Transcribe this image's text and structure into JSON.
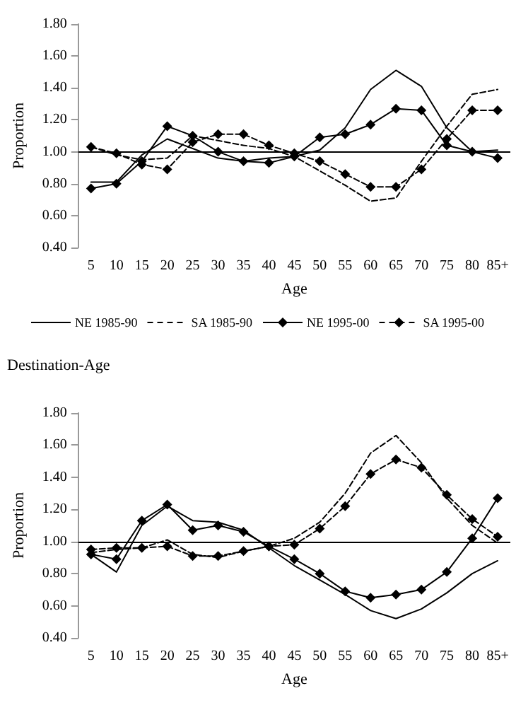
{
  "chart_data": [
    {
      "type": "line",
      "xlabel": "Age",
      "ylabel": "Proportion",
      "categories": [
        "5",
        "10",
        "15",
        "20",
        "25",
        "30",
        "35",
        "40",
        "45",
        "50",
        "55",
        "60",
        "65",
        "70",
        "75",
        "80",
        "85+"
      ],
      "series": [
        {
          "name": "NE 1985-90",
          "color": "#000000",
          "line_style": "solid",
          "marker": "none",
          "values": [
            0.81,
            0.81,
            0.98,
            1.08,
            1.02,
            0.96,
            0.94,
            0.96,
            0.97,
            1.01,
            1.15,
            1.39,
            1.51,
            1.41,
            1.15,
            1.0,
            1.01
          ]
        },
        {
          "name": "SA 1985-90",
          "color": "#000000",
          "line_style": "dashed",
          "marker": "none",
          "values": [
            1.03,
            0.98,
            0.95,
            0.96,
            1.1,
            1.07,
            1.04,
            1.02,
            0.97,
            0.88,
            0.79,
            0.69,
            0.71,
            0.94,
            1.16,
            1.36,
            1.39
          ]
        },
        {
          "name": "NE 1995-00",
          "color": "#000000",
          "line_style": "solid",
          "marker": "diamond",
          "values": [
            0.77,
            0.8,
            0.94,
            1.16,
            1.1,
            1.0,
            0.94,
            0.93,
            0.97,
            1.09,
            1.11,
            1.17,
            1.27,
            1.26,
            1.04,
            1.0,
            0.96
          ]
        },
        {
          "name": "SA 1995-00",
          "color": "#000000",
          "line_style": "dashed",
          "marker": "diamond",
          "values": [
            1.03,
            0.99,
            0.92,
            0.89,
            1.06,
            1.11,
            1.11,
            1.04,
            0.99,
            0.94,
            0.86,
            0.78,
            0.78,
            0.89,
            1.08,
            1.26,
            1.26
          ]
        }
      ],
      "ylim": [
        0.4,
        1.8
      ],
      "yticks": [
        {
          "value": 0.4,
          "label": "0.40"
        },
        {
          "value": 0.6,
          "label": "0.60"
        },
        {
          "value": 0.8,
          "label": "0.80"
        },
        {
          "value": 1.0,
          "label": "1.00"
        },
        {
          "value": 1.2,
          "label": "1.20"
        },
        {
          "value": 1.4,
          "label": "1.40"
        },
        {
          "value": 1.6,
          "label": "1.60"
        },
        {
          "value": 1.8,
          "label": "1.80"
        }
      ],
      "ref_lines": [
        {
          "axis": "y",
          "value": 1.0,
          "color": "#000000"
        }
      ],
      "grid": false,
      "legend": "bottom"
    },
    {
      "type": "line",
      "title": "Destination-Age",
      "xlabel": "Age",
      "ylabel": "Proportion",
      "categories": [
        "5",
        "10",
        "15",
        "20",
        "25",
        "30",
        "35",
        "40",
        "45",
        "50",
        "55",
        "60",
        "65",
        "70",
        "75",
        "80",
        "85+"
      ],
      "series": [
        {
          "color": "#000000",
          "line_style": "solid",
          "marker": "none",
          "values": [
            0.92,
            0.81,
            1.1,
            1.22,
            1.13,
            1.12,
            1.07,
            0.96,
            0.85,
            0.76,
            0.67,
            0.57,
            0.52,
            0.58,
            0.68,
            0.8,
            0.88
          ]
        },
        {
          "color": "#000000",
          "line_style": "dashed",
          "marker": "none",
          "values": [
            0.93,
            0.95,
            0.96,
            1.01,
            0.92,
            0.9,
            0.94,
            0.97,
            1.02,
            1.12,
            1.3,
            1.55,
            1.66,
            1.49,
            1.27,
            1.1,
            0.99
          ]
        },
        {
          "color": "#000000",
          "line_style": "solid",
          "marker": "diamond",
          "values": [
            0.92,
            0.89,
            1.13,
            1.23,
            1.07,
            1.1,
            1.06,
            0.97,
            0.89,
            0.8,
            0.69,
            0.65,
            0.67,
            0.7,
            0.81,
            1.02,
            1.27
          ]
        },
        {
          "color": "#000000",
          "line_style": "dashed",
          "marker": "diamond",
          "values": [
            0.95,
            0.96,
            0.96,
            0.97,
            0.91,
            0.91,
            0.94,
            0.97,
            0.98,
            1.08,
            1.22,
            1.42,
            1.51,
            1.46,
            1.29,
            1.14,
            1.03
          ]
        }
      ],
      "ylim": [
        0.4,
        1.8
      ],
      "yticks": [
        {
          "value": 0.4,
          "label": "0.40"
        },
        {
          "value": 0.6,
          "label": "0.60"
        },
        {
          "value": 0.8,
          "label": "0.80"
        },
        {
          "value": 1.0,
          "label": "1.00"
        },
        {
          "value": 1.2,
          "label": "1.20"
        },
        {
          "value": 1.4,
          "label": "1.40"
        },
        {
          "value": 1.6,
          "label": "1.60"
        },
        {
          "value": 1.8,
          "label": "1.80"
        }
      ],
      "ref_lines": [
        {
          "axis": "y",
          "value": 1.0,
          "color": "#000000"
        }
      ],
      "grid": false
    }
  ]
}
